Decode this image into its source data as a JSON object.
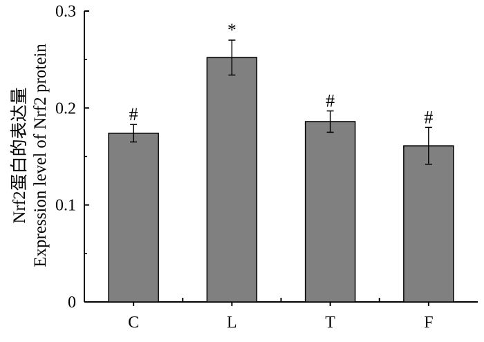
{
  "chart_data": {
    "type": "bar",
    "categories": [
      "C",
      "L",
      "T",
      "F"
    ],
    "values": [
      0.174,
      0.252,
      0.186,
      0.161
    ],
    "errors": [
      0.009,
      0.018,
      0.011,
      0.019
    ],
    "annotations": [
      "#",
      "*",
      "#",
      "#"
    ],
    "ylabel_cn": "Nrf2蛋白的表达量",
    "ylabel_en": "Expression level of Nrf2 protein",
    "ylim": [
      0,
      0.3
    ],
    "yticks": [
      0,
      0.1,
      0.2,
      0.3
    ],
    "ytick_labels": [
      "0",
      "0.1",
      "0.2",
      "0.3"
    ],
    "bar_color": "#808080",
    "grid": false
  }
}
